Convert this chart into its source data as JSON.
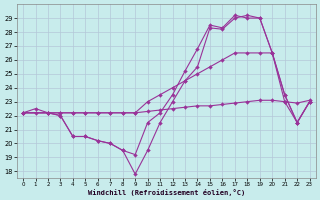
{
  "bg_color": "#c8ecec",
  "grid_color": "#b4c8d8",
  "line_color": "#993399",
  "xlabel": "Windchill (Refroidissement éolien,°C)",
  "xlim_min": -0.5,
  "xlim_max": 23.5,
  "ylim_min": 17.5,
  "ylim_max": 30.0,
  "xticks": [
    0,
    1,
    2,
    3,
    4,
    5,
    6,
    7,
    8,
    9,
    10,
    11,
    12,
    13,
    14,
    15,
    16,
    17,
    18,
    19,
    20,
    21,
    22,
    23
  ],
  "yticks": [
    18,
    19,
    20,
    21,
    22,
    23,
    24,
    25,
    26,
    27,
    28,
    29
  ],
  "line1_x": [
    0,
    1,
    2,
    3,
    4,
    5,
    6,
    7,
    8,
    9,
    10,
    11,
    12,
    13,
    14,
    15,
    16,
    17,
    18,
    19,
    20,
    21,
    22,
    23
  ],
  "line1_y": [
    22.2,
    22.5,
    22.2,
    22.2,
    22.2,
    22.2,
    22.2,
    22.2,
    22.2,
    22.2,
    22.3,
    22.4,
    22.5,
    22.6,
    22.7,
    22.7,
    22.8,
    22.9,
    23.0,
    23.1,
    23.1,
    23.0,
    22.9,
    23.1
  ],
  "line2_x": [
    0,
    1,
    2,
    3,
    4,
    5,
    6,
    7,
    8,
    9,
    10,
    11,
    12,
    13,
    14,
    15,
    16,
    17,
    18,
    19,
    20,
    21,
    22,
    23
  ],
  "line2_y": [
    22.2,
    22.2,
    22.2,
    22.2,
    22.2,
    22.2,
    22.2,
    22.2,
    22.2,
    22.2,
    23.0,
    23.5,
    24.0,
    24.5,
    25.0,
    25.5,
    26.0,
    26.5,
    26.5,
    26.5,
    26.5,
    23.0,
    21.5,
    23.0
  ],
  "line3_x": [
    0,
    2,
    3,
    4,
    5,
    6,
    7,
    8,
    9,
    10,
    11,
    12,
    13,
    14,
    15,
    16,
    17,
    18,
    19,
    20,
    21,
    22,
    23
  ],
  "line3_y": [
    22.2,
    22.2,
    22.0,
    20.5,
    20.5,
    20.2,
    20.0,
    19.5,
    17.8,
    19.5,
    21.5,
    23.0,
    24.5,
    25.5,
    28.3,
    28.2,
    29.0,
    29.2,
    29.0,
    26.5,
    23.5,
    21.5,
    23.0
  ],
  "line4_x": [
    0,
    2,
    3,
    4,
    5,
    6,
    7,
    8,
    9,
    10,
    11,
    12,
    13,
    14,
    15,
    16,
    17,
    18,
    19,
    20,
    21,
    22,
    23
  ],
  "line4_y": [
    22.2,
    22.2,
    22.0,
    20.5,
    20.5,
    20.2,
    20.0,
    19.5,
    19.2,
    21.5,
    22.2,
    23.5,
    25.2,
    26.8,
    28.5,
    28.3,
    29.2,
    29.0,
    29.0,
    26.5,
    23.5,
    21.5,
    23.0
  ]
}
